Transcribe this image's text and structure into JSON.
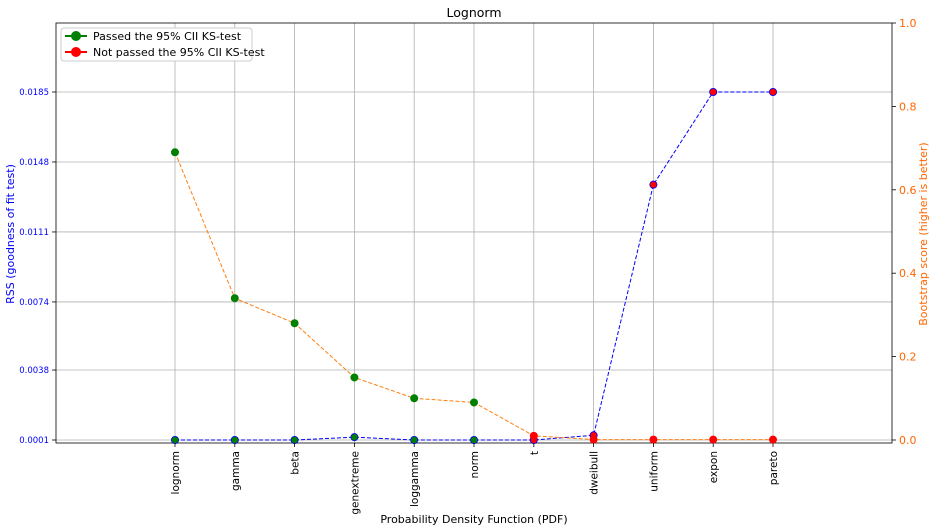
{
  "chart_data": {
    "type": "line",
    "title": "Lognorm",
    "xlabel": "Probability Density Function (PDF)",
    "ylabel_left": "RSS (goodness of fit test)",
    "ylabel_right": "Bootstrap score (higher is better)",
    "categories": [
      "lognorm",
      "gamma",
      "beta",
      "genextreme",
      "loggamma",
      "norm",
      "t",
      "dweibull",
      "uniform",
      "expon",
      "pareto"
    ],
    "left_axis": {
      "ticks": [
        "0.0001",
        "0.0038",
        "0.0074",
        "0.0111",
        "0.0148",
        "0.0185"
      ],
      "tick_values": [
        0.0001,
        0.0038,
        0.0074,
        0.0111,
        0.0148,
        0.0185
      ],
      "ylim": [
        5e-05,
        0.0217
      ],
      "color": "#0000ff"
    },
    "right_axis": {
      "ticks": [
        "0.0",
        "0.2",
        "0.4",
        "0.6",
        "0.8",
        "1.0"
      ],
      "tick_values": [
        0.0,
        0.2,
        0.4,
        0.6,
        0.8,
        1.0
      ],
      "ylim": [
        -0.005,
        1.0
      ],
      "color": "#ff6600"
    },
    "series": [
      {
        "axis": "left",
        "color": "#0000ff",
        "values": [
          0.0001,
          0.0001,
          0.0001,
          0.00025,
          0.0001,
          0.0001,
          0.0001,
          0.00035,
          0.0136,
          0.0185,
          0.0185
        ],
        "passed": [
          true,
          true,
          true,
          true,
          true,
          true,
          false,
          false,
          false,
          false,
          false
        ]
      },
      {
        "axis": "right",
        "color": "#ff7f0e",
        "values": [
          0.69,
          0.34,
          0.28,
          0.15,
          0.1,
          0.09,
          0.01,
          0.001,
          0.001,
          0.001,
          0.001
        ],
        "passed": [
          true,
          true,
          true,
          true,
          true,
          true,
          false,
          false,
          false,
          false,
          false
        ]
      }
    ],
    "legend": {
      "placement": "top-left",
      "entries": [
        {
          "label": "Passed the 95% CII KS-test",
          "color": "#008000"
        },
        {
          "label": "Not passed the 95% CII KS-test",
          "color": "#ff0000"
        }
      ]
    },
    "grid": true
  }
}
